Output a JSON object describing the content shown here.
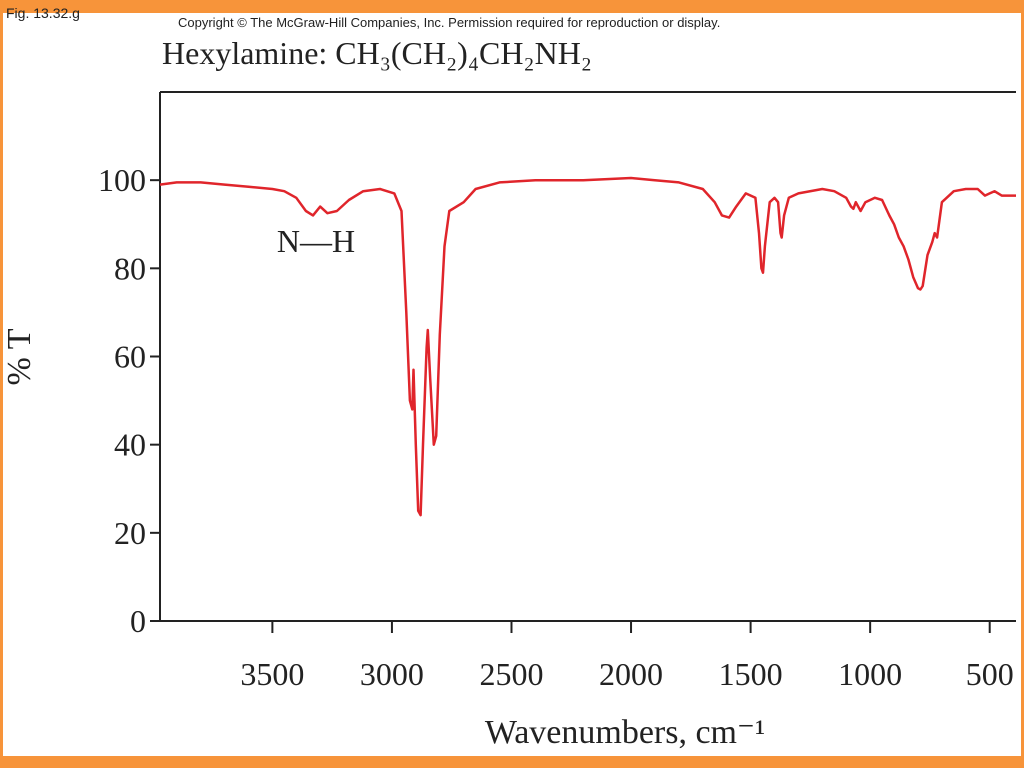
{
  "fig_label": "Fig. 13.32.g",
  "copyright": "Copyright © The McGraw-Hill Companies, Inc. Permission required for reproduction or display.",
  "chart_data": {
    "type": "line",
    "title": "Hexylamine: CH₃(CH₂)₄CH₂NH₂",
    "x_label": "Wavenumbers, cm⁻¹",
    "y_label": "% T",
    "annotation": "N—H",
    "color": "#e0252b",
    "xlim": [
      3970,
      390
    ],
    "ylim": [
      0,
      120
    ],
    "xticks": [
      3500,
      3000,
      2500,
      2000,
      1500,
      1000,
      500
    ],
    "yticks": [
      0,
      20,
      40,
      60,
      80,
      100
    ],
    "x": [
      3970,
      3900,
      3800,
      3700,
      3600,
      3500,
      3450,
      3400,
      3360,
      3330,
      3300,
      3270,
      3230,
      3180,
      3120,
      3050,
      2990,
      2960,
      2940,
      2925,
      2915,
      2910,
      2900,
      2890,
      2880,
      2870,
      2855,
      2850,
      2840,
      2825,
      2815,
      2800,
      2780,
      2760,
      2700,
      2650,
      2550,
      2400,
      2200,
      2000,
      1900,
      1800,
      1700,
      1650,
      1620,
      1590,
      1560,
      1520,
      1480,
      1465,
      1455,
      1448,
      1440,
      1420,
      1400,
      1385,
      1375,
      1370,
      1360,
      1340,
      1300,
      1200,
      1150,
      1100,
      1080,
      1070,
      1060,
      1040,
      1020,
      980,
      950,
      920,
      900,
      880,
      860,
      840,
      820,
      800,
      790,
      780,
      760,
      740,
      730,
      720,
      710,
      700,
      650,
      600,
      550,
      520,
      500,
      480,
      450,
      400,
      390
    ],
    "values": [
      99,
      99.5,
      99.5,
      99,
      98.5,
      98,
      97.5,
      96,
      93,
      92,
      94,
      92.5,
      93,
      95.5,
      97.5,
      98,
      97,
      93,
      70,
      50,
      48,
      57,
      40,
      25,
      24,
      40,
      62,
      66,
      55,
      40,
      42,
      65,
      85,
      93,
      95,
      98,
      99.5,
      100,
      100,
      100.5,
      100,
      99.5,
      98,
      95,
      92,
      91.5,
      94,
      97,
      96,
      88,
      80,
      79,
      85,
      95,
      96,
      95,
      88,
      87,
      92,
      96,
      97,
      98,
      97.5,
      96,
      94,
      93.5,
      95,
      93,
      95,
      96,
      95.5,
      92,
      90,
      87,
      85,
      82,
      78,
      75.5,
      75.2,
      76,
      83,
      86,
      88,
      87,
      91,
      95,
      97.5,
      98,
      98,
      96.5,
      97,
      97.5,
      96.5,
      96.5,
      96.5
    ]
  }
}
